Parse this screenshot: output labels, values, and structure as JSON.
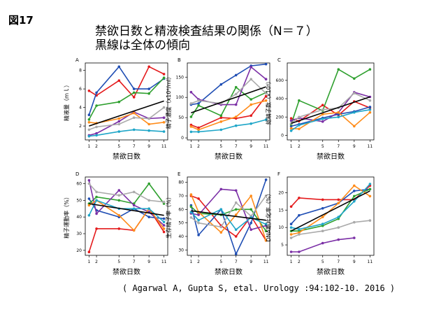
{
  "figure": {
    "label": "図17",
    "title_line1": "禁欲日数と精液検査結果の関係（N＝７）",
    "title_line2": "黒線は全体の傾向",
    "citation": "( Agarwal A, Gupta S, etal. Urology :94:102-10. 2016 )"
  },
  "series_colors": [
    "#e41a1c",
    "#1f4eb4",
    "#2fa02f",
    "#7b2fa6",
    "#ff8c1a",
    "#aaaaaa",
    "#1fa6c8"
  ],
  "trend_color": "#000000",
  "chart_data": [
    {
      "panel": "A",
      "type": "line",
      "xlabel": "禁欲日数",
      "ylabel": "精液量（ｍｌ）",
      "x": [
        1,
        2,
        5,
        7,
        9,
        11
      ],
      "x_ticks": [
        1,
        2,
        5,
        7,
        9,
        11
      ],
      "ylim": [
        0.5,
        8.8
      ],
      "y_ticks": [
        2,
        4,
        6,
        8
      ],
      "series": [
        {
          "values": [
            5.8,
            5.3,
            6.9,
            5.1,
            8.4,
            7.6
          ]
        },
        {
          "values": [
            3.2,
            5.6,
            8.4,
            6.0,
            6.0,
            7.1
          ]
        },
        {
          "values": [
            2.7,
            4.2,
            4.6,
            5.6,
            5.5,
            7.2
          ]
        },
        {
          "values": [
            1.0,
            1.2,
            2.5,
            3.5,
            2.8,
            2.9
          ]
        },
        {
          "values": [
            2.4,
            2.3,
            2.8,
            3.4,
            2.2,
            2.4
          ]
        },
        {
          "values": [
            1.6,
            1.9,
            2.2,
            2.9,
            2.8,
            4.0
          ]
        },
        {
          "values": [
            0.9,
            1.0,
            1.4,
            1.6,
            1.5,
            1.4
          ]
        }
      ],
      "trend": [
        2.0,
        4.7
      ]
    },
    {
      "panel": "B",
      "type": "line",
      "xlabel": "禁欲日数",
      "ylabel": "精子濃度（x10⁶/ml）",
      "x": [
        1,
        2,
        5,
        7,
        9,
        11
      ],
      "x_ticks": [
        1,
        2,
        5,
        7,
        9,
        11
      ],
      "ylim": [
        -5,
        185
      ],
      "y_ticks": [
        0,
        50,
        100,
        150
      ],
      "series": [
        {
          "values": [
            32,
            25,
            50,
            48,
            55,
            103
          ]
        },
        {
          "values": [
            82,
            85,
            132,
            155,
            178,
            182
          ]
        },
        {
          "values": [
            52,
            80,
            55,
            125,
            95,
            112
          ]
        },
        {
          "values": [
            113,
            95,
            82,
            82,
            175,
            145
          ]
        },
        {
          "values": [
            28,
            20,
            40,
            52,
            82,
            92
          ]
        },
        {
          "values": [
            85,
            92,
            85,
            108,
            145,
            110
          ]
        },
        {
          "values": [
            15,
            15,
            20,
            30,
            35,
            45
          ]
        }
      ],
      "trend": [
        62,
        126
      ]
    },
    {
      "panel": "C",
      "type": "line",
      "xlabel": "禁欲日数",
      "ylabel": "総精子数（x10⁶）",
      "x": [
        1,
        2,
        5,
        7,
        9,
        11
      ],
      "x_ticks": [
        1,
        2,
        5,
        7,
        9,
        11
      ],
      "ylim": [
        -50,
        790
      ],
      "y_ticks": [
        0,
        200,
        400,
        600
      ],
      "series": [
        {
          "values": [
            185,
            155,
            330,
            220,
            370,
            300
          ]
        },
        {
          "values": [
            100,
            120,
            190,
            230,
            260,
            310
          ]
        },
        {
          "values": [
            120,
            380,
            270,
            720,
            620,
            720
          ]
        },
        {
          "values": [
            160,
            190,
            150,
            250,
            470,
            420
          ]
        },
        {
          "values": [
            75,
            70,
            230,
            250,
            100,
            250
          ]
        },
        {
          "values": [
            130,
            200,
            280,
            300,
            460,
            380
          ]
        },
        {
          "values": [
            50,
            110,
            180,
            200,
            250,
            280
          ]
        }
      ],
      "trend": [
        130,
        420
      ]
    },
    {
      "panel": "D",
      "type": "line",
      "xlabel": "禁欲日数",
      "ylabel": "精子運動率（%）",
      "x": [
        1,
        2,
        5,
        7,
        9,
        11
      ],
      "x_ticks": [
        1,
        2,
        5,
        7,
        9,
        11
      ],
      "ylim": [
        17,
        64
      ],
      "y_ticks": [
        20,
        30,
        40,
        50,
        60
      ],
      "series": [
        {
          "values": [
            19,
            33,
            33,
            32,
            45,
            31
          ]
        },
        {
          "values": [
            51,
            44,
            40,
            45,
            40,
            39
          ]
        },
        {
          "values": [
            48,
            52,
            50,
            48,
            60,
            48
          ]
        },
        {
          "values": [
            62,
            42,
            56,
            47,
            43,
            35
          ]
        },
        {
          "values": [
            47,
            50,
            41,
            32,
            45,
            33
          ]
        },
        {
          "values": [
            60,
            55,
            53,
            55,
            50,
            49
          ]
        },
        {
          "values": [
            41,
            50,
            45,
            45,
            45,
            37
          ]
        }
      ],
      "trend": [
        48,
        41
      ]
    },
    {
      "panel": "E",
      "type": "line",
      "xlabel": "禁欲日数",
      "ylabel": "生存精子率（%）",
      "x": [
        1,
        2,
        5,
        7,
        9,
        11
      ],
      "x_ticks": [
        1,
        2,
        5,
        7,
        9,
        11
      ],
      "ylim": [
        26,
        84
      ],
      "y_ticks": [
        30,
        40,
        50,
        60,
        70,
        80
      ],
      "series": [
        {
          "values": [
            70,
            68,
            48,
            40,
            55,
            37
          ]
        },
        {
          "values": [
            63,
            41,
            60,
            27,
            50,
            82
          ]
        },
        {
          "values": [
            62,
            57,
            56,
            60,
            60,
            44
          ]
        },
        {
          "values": [
            57,
            56,
            75,
            74,
            45,
            48
          ]
        },
        {
          "values": [
            71,
            58,
            43,
            56,
            70,
            37
          ]
        },
        {
          "values": [
            54,
            50,
            47,
            65,
            55,
            70
          ]
        },
        {
          "values": [
            58,
            52,
            60,
            45,
            54,
            49
          ]
        }
      ],
      "trend": [
        59,
        52
      ]
    },
    {
      "panel": "F",
      "type": "line",
      "xlabel": "禁欲日数",
      "ylabel": "DNA断片化率（%）",
      "x": [
        1,
        2,
        5,
        7,
        9,
        11
      ],
      "x_ticks": [
        1,
        2,
        5,
        7,
        9,
        11
      ],
      "ylim": [
        2,
        24.5
      ],
      "y_ticks": [
        5,
        10,
        15,
        20
      ],
      "series": [
        {
          "values": [
            16,
            18.5,
            18,
            18,
            18,
            22
          ]
        },
        {
          "values": [
            11,
            13.5,
            15.5,
            17,
            20.5,
            21
          ]
        },
        {
          "values": [
            9,
            9,
            10.5,
            12.5,
            19,
            21
          ]
        },
        {
          "values": [
            3,
            3,
            5.5,
            6.5,
            7,
            null
          ]
        },
        {
          "values": [
            8,
            8.5,
            13,
            17,
            22,
            19
          ]
        },
        {
          "values": [
            7,
            8,
            9,
            10,
            11.5,
            12
          ]
        },
        {
          "values": [
            10,
            9.5,
            11,
            13,
            17.5,
            22.5
          ]
        }
      ],
      "trend": [
        9,
        20.5
      ]
    }
  ]
}
